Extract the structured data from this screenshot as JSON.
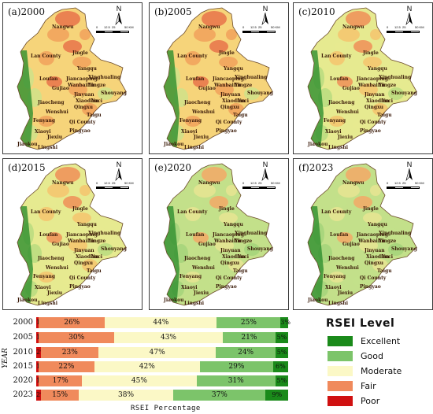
{
  "panels": [
    {
      "label": "(a)2000"
    },
    {
      "label": "(b)2005"
    },
    {
      "label": "(c)2010"
    },
    {
      "label": "(d)2015"
    },
    {
      "label": "(e)2020"
    },
    {
      "label": "(f)2023"
    }
  ],
  "north_arrow": "N",
  "scale_bar": {
    "ticks": [
      "0",
      "12.5",
      "25",
      "50 KM"
    ]
  },
  "place_names": [
    "Nangwu",
    "Lan County",
    "Jingle",
    "Yangqu",
    "Loufan",
    "Jiancaoping",
    "Xinghualing",
    "Gujiao",
    "Wanbailin",
    "Yingze",
    "Jinyuan",
    "Shouyang",
    "Jiaocheng",
    "Xiaodian",
    "Yuci",
    "Qingxu",
    "Wenshui",
    "Taigu",
    "Fenyang",
    "Qi County",
    "Xiaoyi",
    "Pingyao",
    "Jiexiu",
    "Jiaokou",
    "Lingshi"
  ],
  "colors": {
    "Excellent": "#1a8a1a",
    "Good": "#7cc46a",
    "Moderate": "#fbf8c6",
    "Fair": "#f08a5c",
    "Poor": "#d01010"
  },
  "chart_data": {
    "type": "bar",
    "orientation": "horizontal-stacked",
    "categories": [
      "2000",
      "2005",
      "2010",
      "2015",
      "2020",
      "2023"
    ],
    "series": [
      {
        "name": "Poor",
        "values": [
          1,
          1,
          2,
          1,
          1,
          2
        ]
      },
      {
        "name": "Fair",
        "values": [
          26,
          30,
          23,
          22,
          17,
          15
        ]
      },
      {
        "name": "Moderate",
        "values": [
          44,
          43,
          47,
          42,
          45,
          38
        ]
      },
      {
        "name": "Good",
        "values": [
          25,
          21,
          24,
          29,
          31,
          37
        ]
      },
      {
        "name": "Excellent",
        "values": [
          3,
          5,
          5,
          6,
          5,
          9
        ]
      }
    ],
    "xlabel": "RSEI Percentage",
    "ylabel": "YEAR",
    "legend_title": "RSEI  Level",
    "legend_order": [
      "Excellent",
      "Good",
      "Moderate",
      "Fair",
      "Poor"
    ],
    "legend_position": "right"
  }
}
